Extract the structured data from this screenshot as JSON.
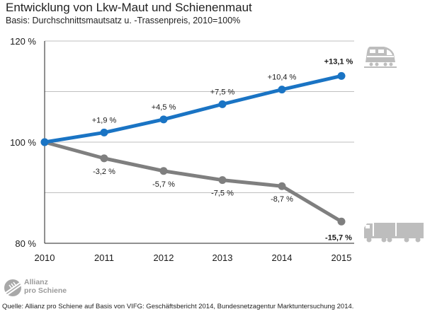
{
  "title": "Entwicklung von Lkw-Maut und Schienenmaut",
  "subtitle": "Basis: Durchschnittsmautsatz u. -Trassenpreis, 2010=100%",
  "logo": {
    "line1": "Allianz",
    "line2": "pro Schiene"
  },
  "source": "Quelle: Allianz pro Schiene auf Basis von VIFG: Geschäftsbericht 2014, Bundesnetzagentur Marktuntersuchung 2014.",
  "colors": {
    "rail": "#1a74c4",
    "truck": "#7f7f7f",
    "axis": "#222222",
    "grid": "#bfbfbf",
    "icon": "#bdbdbd"
  },
  "chart_data": {
    "type": "line",
    "categories": [
      "2010",
      "2011",
      "2012",
      "2013",
      "2014",
      "2015"
    ],
    "ylim": [
      80,
      120
    ],
    "y_ticks": [
      "80 %",
      "100 %",
      "120 %"
    ],
    "series": [
      {
        "id": "rail",
        "icon": "train-icon",
        "values": [
          100,
          101.9,
          104.5,
          107.5,
          110.4,
          113.1
        ],
        "labels": [
          "",
          "+1,9 %",
          "+4,5 %",
          "+7,5 %",
          "+10,4 %",
          "+13,1 %"
        ]
      },
      {
        "id": "truck",
        "icon": "truck-icon",
        "values": [
          100,
          96.8,
          94.3,
          92.5,
          91.3,
          84.3
        ],
        "labels": [
          "",
          "-3,2 %",
          "-5,7 %",
          "-7,5 %",
          "-8,7 %",
          "-15,7 %"
        ]
      }
    ]
  }
}
